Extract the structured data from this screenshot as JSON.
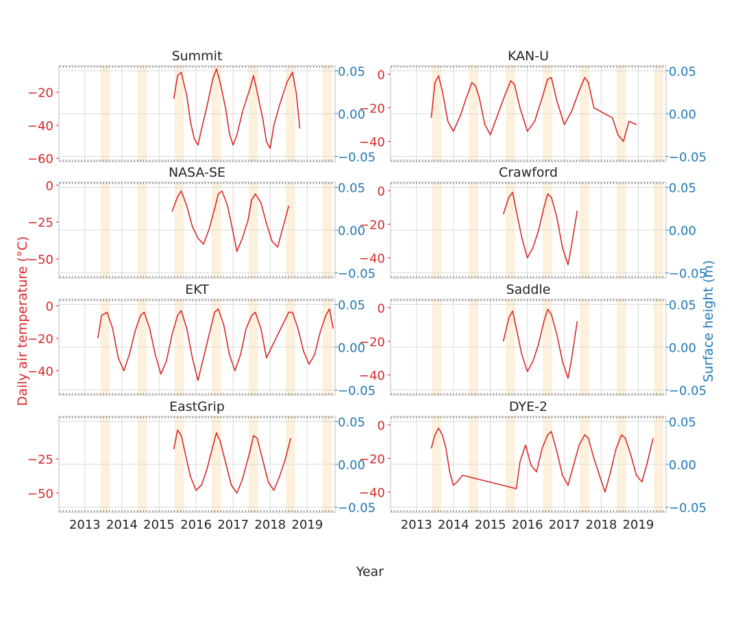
{
  "figure": {
    "xlabel": "Year",
    "ylabel_left": "Daily air temperature (°C)",
    "ylabel_right": "Surface height (m)"
  },
  "colors": {
    "temperature": "#d62728",
    "surface_axis": "#1f77b4",
    "summer_band": "#fdf0dc",
    "grid": "#d9d9d9"
  },
  "chart_data": [
    {
      "type": "line",
      "title": "Summit",
      "xlim": [
        2012.3,
        2019.75
      ],
      "ylim": [
        -62,
        -4
      ],
      "yticks": [
        -60,
        -40,
        -20
      ],
      "x": [
        2015.4,
        2015.5,
        2015.6,
        2015.75,
        2015.85,
        2015.95,
        2016.05,
        2016.15,
        2016.3,
        2016.45,
        2016.55,
        2016.65,
        2016.8,
        2016.9,
        2017.0,
        2017.1,
        2017.25,
        2017.45,
        2017.55,
        2017.65,
        2017.8,
        2017.9,
        2018.0,
        2018.1,
        2018.25,
        2018.45,
        2018.6,
        2018.7,
        2018.8
      ],
      "series": [
        {
          "name": "",
          "values": [
            -24,
            -10,
            -8,
            -22,
            -38,
            -48,
            -52,
            -42,
            -28,
            -12,
            -6,
            -14,
            -30,
            -45,
            -52,
            -46,
            -32,
            -18,
            -10,
            -20,
            -36,
            -50,
            -54,
            -40,
            -28,
            -14,
            -8,
            -20,
            -42
          ]
        }
      ]
    },
    {
      "type": "line",
      "title": "KAN-U",
      "xlim": [
        2012.3,
        2019.75
      ],
      "ylim": [
        -52,
        5
      ],
      "yticks": [
        -40,
        -20,
        0
      ],
      "x": [
        2013.4,
        2013.5,
        2013.6,
        2013.7,
        2013.85,
        2014.0,
        2014.2,
        2014.35,
        2014.5,
        2014.6,
        2014.7,
        2014.85,
        2015.0,
        2015.2,
        2015.4,
        2015.55,
        2015.65,
        2015.8,
        2016.0,
        2016.2,
        2016.4,
        2016.55,
        2016.65,
        2016.8,
        2017.0,
        2017.2,
        2017.4,
        2017.55,
        2017.65,
        2017.8,
        2018.3,
        2018.45,
        2018.6,
        2018.75,
        2018.95
      ],
      "series": [
        {
          "name": "",
          "values": [
            -26,
            -5,
            -1,
            -10,
            -28,
            -34,
            -24,
            -14,
            -5,
            -7,
            -14,
            -30,
            -36,
            -24,
            -12,
            -4,
            -6,
            -20,
            -34,
            -28,
            -14,
            -3,
            -2,
            -16,
            -30,
            -22,
            -10,
            -2,
            -5,
            -20,
            -26,
            -36,
            -40,
            -28,
            -30
          ]
        }
      ]
    },
    {
      "type": "line",
      "title": "NASA-SE",
      "xlim": [
        2012.3,
        2019.75
      ],
      "ylim": [
        -63,
        2
      ],
      "yticks": [
        -50,
        -25,
        0
      ],
      "x": [
        2015.35,
        2015.5,
        2015.6,
        2015.75,
        2015.9,
        2016.05,
        2016.2,
        2016.35,
        2016.5,
        2016.6,
        2016.7,
        2016.85,
        2017.0,
        2017.1,
        2017.25,
        2017.4,
        2017.5,
        2017.6,
        2017.75,
        2017.9,
        2018.05,
        2018.2,
        2018.35,
        2018.5
      ],
      "series": [
        {
          "name": "",
          "values": [
            -18,
            -8,
            -4,
            -14,
            -28,
            -36,
            -40,
            -30,
            -16,
            -6,
            -4,
            -14,
            -32,
            -45,
            -36,
            -24,
            -10,
            -6,
            -12,
            -26,
            -38,
            -42,
            -28,
            -14
          ]
        }
      ]
    },
    {
      "type": "line",
      "title": "Crawford",
      "xlim": [
        2012.3,
        2019.75
      ],
      "ylim": [
        -52,
        5
      ],
      "yticks": [
        -40,
        -20,
        0
      ],
      "x": [
        2015.35,
        2015.5,
        2015.6,
        2015.7,
        2015.85,
        2016.0,
        2016.15,
        2016.3,
        2016.45,
        2016.55,
        2016.65,
        2016.8,
        2016.95,
        2017.1,
        2017.2,
        2017.35
      ],
      "series": [
        {
          "name": "",
          "values": [
            -14,
            -4,
            -1,
            -12,
            -28,
            -40,
            -34,
            -24,
            -10,
            -2,
            -4,
            -16,
            -34,
            -44,
            -32,
            -12
          ]
        }
      ]
    },
    {
      "type": "line",
      "title": "EKT",
      "xlim": [
        2012.3,
        2019.75
      ],
      "ylim": [
        -55,
        4
      ],
      "yticks": [
        -40,
        -20,
        0
      ],
      "x": [
        2013.35,
        2013.45,
        2013.6,
        2013.75,
        2013.9,
        2014.05,
        2014.2,
        2014.35,
        2014.5,
        2014.6,
        2014.75,
        2014.9,
        2015.05,
        2015.2,
        2015.35,
        2015.5,
        2015.6,
        2015.75,
        2015.9,
        2016.05,
        2016.2,
        2016.35,
        2016.5,
        2016.6,
        2016.75,
        2016.9,
        2017.05,
        2017.2,
        2017.35,
        2017.5,
        2017.6,
        2017.75,
        2017.9,
        2018.5,
        2018.6,
        2018.75,
        2018.9,
        2019.05,
        2019.2,
        2019.35,
        2019.5,
        2019.6,
        2019.7
      ],
      "series": [
        {
          "name": "",
          "values": [
            -20,
            -6,
            -4,
            -14,
            -32,
            -40,
            -30,
            -16,
            -6,
            -4,
            -14,
            -30,
            -42,
            -34,
            -18,
            -6,
            -3,
            -14,
            -32,
            -46,
            -32,
            -18,
            -4,
            -2,
            -12,
            -30,
            -40,
            -30,
            -14,
            -6,
            -4,
            -14,
            -32,
            -4,
            -4,
            -14,
            -28,
            -36,
            -30,
            -16,
            -6,
            -2,
            -14
          ]
        }
      ]
    },
    {
      "type": "line",
      "title": "Saddle",
      "xlim": [
        2012.3,
        2019.75
      ],
      "ylim": [
        -52,
        5
      ],
      "yticks": [
        -40,
        -20,
        0
      ],
      "x": [
        2015.35,
        2015.5,
        2015.6,
        2015.7,
        2015.85,
        2016.0,
        2016.15,
        2016.3,
        2016.45,
        2016.55,
        2016.65,
        2016.8,
        2016.95,
        2017.1,
        2017.2,
        2017.35
      ],
      "series": [
        {
          "name": "",
          "values": [
            -20,
            -6,
            -2,
            -12,
            -28,
            -38,
            -32,
            -22,
            -8,
            -1,
            -4,
            -16,
            -32,
            -42,
            -30,
            -8
          ]
        }
      ]
    },
    {
      "type": "line",
      "title": "EastGrip",
      "xlim": [
        2012.3,
        2019.75
      ],
      "ylim": [
        -64,
        6
      ],
      "yticks": [
        -50,
        -25
      ],
      "x": [
        2015.4,
        2015.5,
        2015.6,
        2015.7,
        2015.85,
        2016.0,
        2016.15,
        2016.3,
        2016.45,
        2016.55,
        2016.65,
        2016.8,
        2016.95,
        2017.1,
        2017.25,
        2017.45,
        2017.55,
        2017.65,
        2017.8,
        2017.95,
        2018.1,
        2018.25,
        2018.4,
        2018.55
      ],
      "series": [
        {
          "name": "",
          "values": [
            -18,
            -4,
            -8,
            -20,
            -38,
            -48,
            -44,
            -32,
            -16,
            -6,
            -12,
            -28,
            -44,
            -50,
            -40,
            -20,
            -8,
            -10,
            -26,
            -42,
            -48,
            -38,
            -26,
            -10
          ]
        }
      ]
    },
    {
      "type": "line",
      "title": "DYE-2",
      "xlim": [
        2012.3,
        2019.75
      ],
      "ylim": [
        -52,
        5
      ],
      "yticks": [
        -40,
        -20,
        0
      ],
      "x": [
        2013.4,
        2013.5,
        2013.6,
        2013.7,
        2013.8,
        2013.9,
        2014.0,
        2014.1,
        2014.25,
        2015.7,
        2015.8,
        2015.95,
        2016.1,
        2016.25,
        2016.4,
        2016.55,
        2016.65,
        2016.8,
        2016.95,
        2017.1,
        2017.25,
        2017.4,
        2017.55,
        2017.65,
        2017.8,
        2017.95,
        2018.1,
        2018.25,
        2018.4,
        2018.55,
        2018.65,
        2018.8,
        2018.95,
        2019.1,
        2019.25,
        2019.4
      ],
      "series": [
        {
          "name": "",
          "values": [
            -14,
            -6,
            -2,
            -6,
            -14,
            -28,
            -36,
            -34,
            -30,
            -38,
            -22,
            -12,
            -24,
            -28,
            -14,
            -6,
            -4,
            -16,
            -30,
            -36,
            -24,
            -12,
            -6,
            -8,
            -20,
            -30,
            -40,
            -28,
            -14,
            -6,
            -8,
            -18,
            -30,
            -34,
            -22,
            -8
          ]
        }
      ]
    }
  ]
}
